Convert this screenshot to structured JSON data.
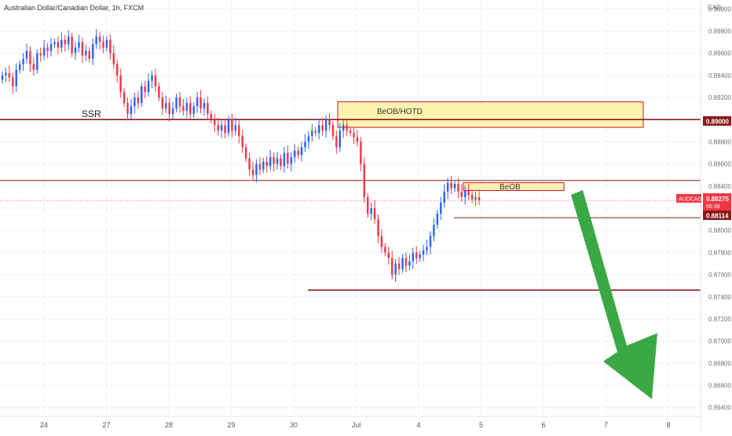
{
  "header": {
    "title": "Australian Dollar/Canadian Dollar, 1h, FXCM"
  },
  "price_axis": {
    "currency": "CAD",
    "labels": [
      "0.90000",
      "0.89800",
      "0.89600",
      "0.89400",
      "0.89200",
      "0.89000",
      "0.88800",
      "0.88600",
      "0.88400",
      "0.88200",
      "0.88000",
      "0.87800",
      "0.87600",
      "0.87400",
      "0.87200",
      "0.87000",
      "0.86800",
      "0.86600",
      "0.86400"
    ]
  },
  "time_axis": {
    "labels": [
      "24",
      "27",
      "28",
      "29",
      "30",
      "Jul",
      "4",
      "5",
      "6",
      "7",
      "8"
    ]
  },
  "annotations": {
    "ssr": "SSR",
    "zone1_label": "BeOB/HOTD",
    "zone2_label": "BeOB"
  },
  "price_tags": {
    "level1": "0.89000",
    "symbol": "AUDCAD",
    "current": "0.88275",
    "countdown": "55:38",
    "level2": "0.88114"
  },
  "colors": {
    "up": "#2962ff",
    "down": "#f23645",
    "level_line": "#8b1a1a",
    "zone_fill": "#fff3b0",
    "zone_border": "#c8102e",
    "arrow": "#3aa845",
    "grid": "#f0f3fa"
  },
  "chart_data": {
    "type": "candlestick",
    "title": "Australian Dollar/Canadian Dollar, 1h, FXCM",
    "ylim": [
      0.8632,
      0.9008
    ],
    "x_tick_labels": [
      "24",
      "27",
      "28",
      "29",
      "30",
      "Jul",
      "4",
      "5",
      "6",
      "7",
      "8"
    ],
    "horizontal_levels": [
      0.89,
      0.8845,
      0.88114,
      0.8746
    ],
    "zones": [
      {
        "label": "BeOB/HOTD",
        "y_range": [
          0.8893,
          0.8916
        ]
      },
      {
        "label": "BeOB",
        "y_range": [
          0.8836,
          0.8843
        ]
      }
    ],
    "series": [
      {
        "name": "AUDCAD",
        "close": [
          0.894,
          0.8942,
          0.8938,
          0.893,
          0.8945,
          0.895,
          0.8955,
          0.8962,
          0.895,
          0.8945,
          0.896,
          0.8958,
          0.8965,
          0.8962,
          0.8968,
          0.897,
          0.8965,
          0.8972,
          0.8968,
          0.8975,
          0.896,
          0.8965,
          0.897,
          0.8958,
          0.8962,
          0.8955,
          0.8968,
          0.8975,
          0.897,
          0.8965,
          0.8972,
          0.896,
          0.895,
          0.894,
          0.8925,
          0.8915,
          0.8905,
          0.8912,
          0.892,
          0.8915,
          0.893,
          0.8925,
          0.8935,
          0.894,
          0.893,
          0.892,
          0.891,
          0.8915,
          0.8905,
          0.891,
          0.892,
          0.8912,
          0.8908,
          0.8915,
          0.8905,
          0.8912,
          0.892,
          0.891,
          0.8915,
          0.8905,
          0.89,
          0.8895,
          0.889,
          0.8895,
          0.8888,
          0.89,
          0.889,
          0.8895,
          0.8885,
          0.8875,
          0.8865,
          0.8855,
          0.885,
          0.886,
          0.8855,
          0.8862,
          0.8858,
          0.8866,
          0.886,
          0.8865,
          0.8858,
          0.887,
          0.886,
          0.8866,
          0.8872,
          0.8868,
          0.8875,
          0.888,
          0.8885,
          0.889,
          0.8888,
          0.8895,
          0.889,
          0.89,
          0.8895,
          0.8885,
          0.8875,
          0.889,
          0.8895,
          0.889,
          0.8888,
          0.8884,
          0.888,
          0.886,
          0.883,
          0.8815,
          0.882,
          0.881,
          0.8795,
          0.8785,
          0.878,
          0.8775,
          0.876,
          0.877,
          0.8765,
          0.8775,
          0.8768,
          0.8772,
          0.878,
          0.8775,
          0.8778,
          0.8782,
          0.8785,
          0.8795,
          0.8805,
          0.8815,
          0.8825,
          0.8835,
          0.8843,
          0.8838,
          0.8842,
          0.8835,
          0.883,
          0.8836,
          0.8832,
          0.8828,
          0.883,
          0.8827
        ]
      }
    ]
  }
}
